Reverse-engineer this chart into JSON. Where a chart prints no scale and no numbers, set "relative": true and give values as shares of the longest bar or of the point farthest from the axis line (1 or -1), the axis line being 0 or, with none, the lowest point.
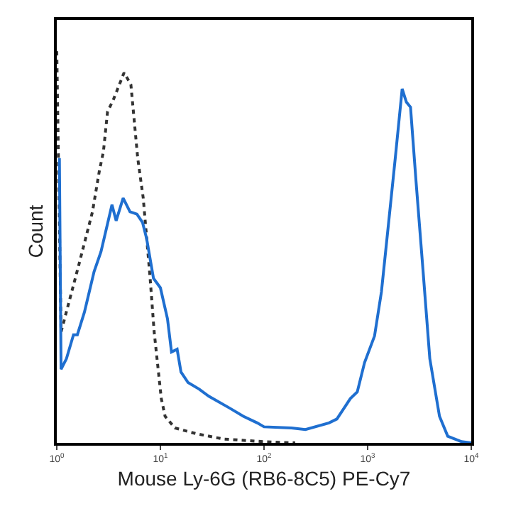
{
  "chart_data": {
    "type": "line",
    "relative": true,
    "xlabel": "Mouse Ly-6G (RB6-8C5) PE-Cy7",
    "ylabel": "Count",
    "log": "x",
    "xlim": [
      1,
      10000
    ],
    "xticks": [
      {
        "value": 1,
        "label": "10$^{0}$"
      },
      {
        "value": 10,
        "label": "10$^{1}$"
      },
      {
        "value": 100,
        "label": "10$^{2}$"
      },
      {
        "value": 1000,
        "label": "10$^{3}$"
      },
      {
        "value": 10000,
        "label": "10$^{4}$"
      }
    ],
    "marker": "none",
    "series": [
      {
        "color": "#333333",
        "line_style": "dotted",
        "x": [
          1,
          1.1,
          1.63,
          2.21,
          2.57,
          2.82,
          3.09,
          3.49,
          4.46,
          5.19,
          6.04,
          6.83,
          7.96,
          8.71,
          10.2,
          11.1,
          13.8,
          21.8,
          40.1,
          100,
          200
        ],
        "values": [
          1.0,
          0.283,
          0.454,
          0.59,
          0.693,
          0.744,
          0.846,
          0.874,
          0.945,
          0.915,
          0.727,
          0.625,
          0.42,
          0.283,
          0.113,
          0.068,
          0.038,
          0.024,
          0.01,
          0.003,
          0
        ]
      },
      {
        "color": "#1f6fd0",
        "line_style": "solid",
        "x": [
          1.06,
          1.1,
          1.24,
          1.45,
          1.58,
          1.85,
          2.29,
          2.67,
          3.41,
          3.74,
          4.37,
          5.09,
          5.93,
          6.72,
          7.36,
          8.58,
          10,
          11.7,
          12.8,
          14.5,
          15.8,
          18.5,
          23.7,
          29.3,
          46.4,
          63.1,
          86,
          100,
          184,
          251,
          424,
          505,
          681,
          794,
          934,
          1166,
          1359,
          1585,
          1848,
          2154,
          2364,
          2593,
          2929,
          3415,
          3981,
          4937,
          5930,
          8072,
          10000
        ],
        "values": [
          0.727,
          0.188,
          0.215,
          0.276,
          0.276,
          0.334,
          0.437,
          0.488,
          0.608,
          0.567,
          0.625,
          0.59,
          0.584,
          0.563,
          0.522,
          0.42,
          0.396,
          0.317,
          0.232,
          0.239,
          0.181,
          0.154,
          0.137,
          0.119,
          0.089,
          0.068,
          0.051,
          0.041,
          0.038,
          0.034,
          0.051,
          0.061,
          0.113,
          0.13,
          0.205,
          0.273,
          0.386,
          0.556,
          0.727,
          0.904,
          0.87,
          0.857,
          0.669,
          0.444,
          0.215,
          0.068,
          0.017,
          0.003,
          0
        ]
      }
    ]
  }
}
